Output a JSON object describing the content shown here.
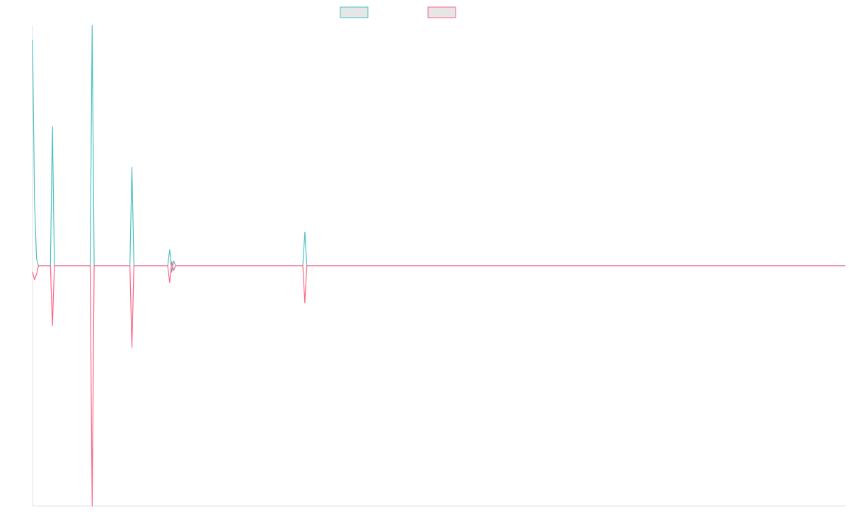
{
  "colors": {
    "series_a": "#4bc0c0",
    "series_b": "#ff6384",
    "swatch_fill": "#e6e6e6",
    "axis": "#e0e0e0"
  },
  "chart_data": {
    "type": "line",
    "title": "",
    "xlabel": "",
    "ylabel": "",
    "grid": false,
    "legend": "top-center",
    "xlim": [
      0,
      409
    ],
    "ylim": [
      -1.0,
      1.0
    ],
    "series": [
      {
        "color_key": "series_a",
        "points": [
          [
            0,
            0.94
          ],
          [
            1,
            0.27
          ],
          [
            2,
            0.03
          ],
          [
            3,
            0
          ],
          [
            9,
            0
          ],
          [
            10,
            0.58
          ],
          [
            11,
            0
          ],
          [
            29,
            0
          ],
          [
            30,
            1.0
          ],
          [
            31,
            0
          ],
          [
            49,
            0
          ],
          [
            50,
            0.41
          ],
          [
            51,
            0
          ],
          [
            68,
            0
          ],
          [
            69,
            0.067
          ],
          [
            70,
            -0.027
          ],
          [
            71,
            0.019
          ],
          [
            72,
            0
          ],
          [
            136,
            0
          ],
          [
            137,
            0.14
          ],
          [
            138,
            0
          ],
          [
            409,
            0
          ]
        ]
      },
      {
        "color_key": "series_b",
        "points": [
          [
            0,
            -0.026
          ],
          [
            1,
            -0.058
          ],
          [
            2,
            -0.036
          ],
          [
            3,
            0
          ],
          [
            9,
            0
          ],
          [
            10,
            -0.25
          ],
          [
            11,
            0
          ],
          [
            29,
            0
          ],
          [
            30,
            -1.0
          ],
          [
            31,
            0
          ],
          [
            49,
            0
          ],
          [
            50,
            -0.34
          ],
          [
            51,
            0
          ],
          [
            68,
            0
          ],
          [
            69,
            -0.07
          ],
          [
            70,
            0.016
          ],
          [
            71,
            -0.02
          ],
          [
            72,
            0
          ],
          [
            136,
            0
          ],
          [
            137,
            -0.155
          ],
          [
            138,
            0
          ],
          [
            409,
            0
          ]
        ]
      }
    ]
  }
}
